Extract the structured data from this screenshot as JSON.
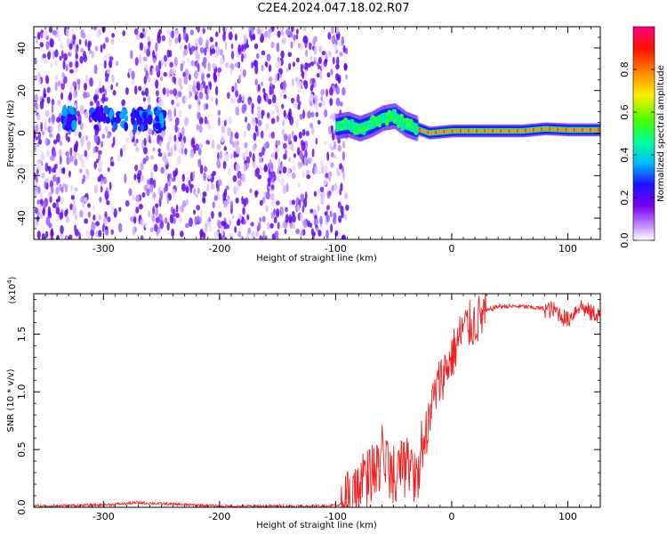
{
  "title": "C2E4.2024.047.18.02.R07",
  "chart_data": [
    {
      "type": "heatmap",
      "xlabel": "Height of straight line (km)",
      "ylabel": "Frequency (Hz)",
      "xlim": [
        -360,
        128
      ],
      "ylim": [
        -50,
        50
      ],
      "xticks": [
        -300,
        -200,
        -100,
        0,
        100
      ],
      "yticks": [
        -40,
        -20,
        0,
        20,
        40
      ],
      "colorbar": {
        "label": "Normalized spectral amplitude",
        "range": [
          0.0,
          1.0
        ],
        "ticks": [
          "0.0",
          "0.2",
          "0.4",
          "0.6",
          "0.8"
        ],
        "tick_values": [
          0.0,
          0.2,
          0.4,
          0.6,
          0.8
        ],
        "colors": [
          "#ffffff",
          "#cc99ff",
          "#7a00ee",
          "#2010ff",
          "#00bbff",
          "#00ff99",
          "#44ff00",
          "#ffee00",
          "#ff7700",
          "#ff1100",
          "#ff0088"
        ]
      },
      "signal_trace": {
        "x": [
          -100,
          -90,
          -80,
          -70,
          -60,
          -50,
          -40,
          -30,
          -20,
          -10,
          0,
          20,
          40,
          60,
          80,
          100,
          120
        ],
        "freq": [
          3,
          4,
          2,
          4,
          7,
          8,
          4,
          2,
          0,
          0.5,
          1,
          1,
          1,
          1,
          2,
          1.5,
          1.5
        ]
      },
      "noise_region": [
        -360,
        -90
      ]
    },
    {
      "type": "line",
      "xlabel": "Height of straight line (km)",
      "ylabel": "SNR (10 * v/v)",
      "y_multiplier": "(x10",
      "y_multiplier_exp": "4",
      "y_multiplier_close": ")",
      "xlim": [
        -360,
        128
      ],
      "ylim": [
        0,
        1.85
      ],
      "xticks": [
        -300,
        -200,
        -100,
        0,
        100
      ],
      "yticks": [
        "0.0",
        "0.5",
        "1.0",
        "1.5"
      ],
      "ytick_values": [
        0.0,
        0.5,
        1.0,
        1.5
      ],
      "color": "#ee2222",
      "series": [
        {
          "x": [
            -360,
            -300,
            -270,
            -200,
            -110,
            -90,
            -80,
            -70,
            -60,
            -50,
            -40,
            -30,
            -20,
            -10,
            0,
            10,
            20,
            30,
            40,
            60,
            80,
            90,
            100,
            110,
            120,
            128
          ],
          "values": [
            0.01,
            0.02,
            0.04,
            0.01,
            0.01,
            0.03,
            0.15,
            0.3,
            0.45,
            0.3,
            0.35,
            0.3,
            0.8,
            1.1,
            1.3,
            1.55,
            1.6,
            1.7,
            1.74,
            1.74,
            1.72,
            1.7,
            1.62,
            1.75,
            1.68,
            1.67
          ]
        }
      ]
    }
  ]
}
